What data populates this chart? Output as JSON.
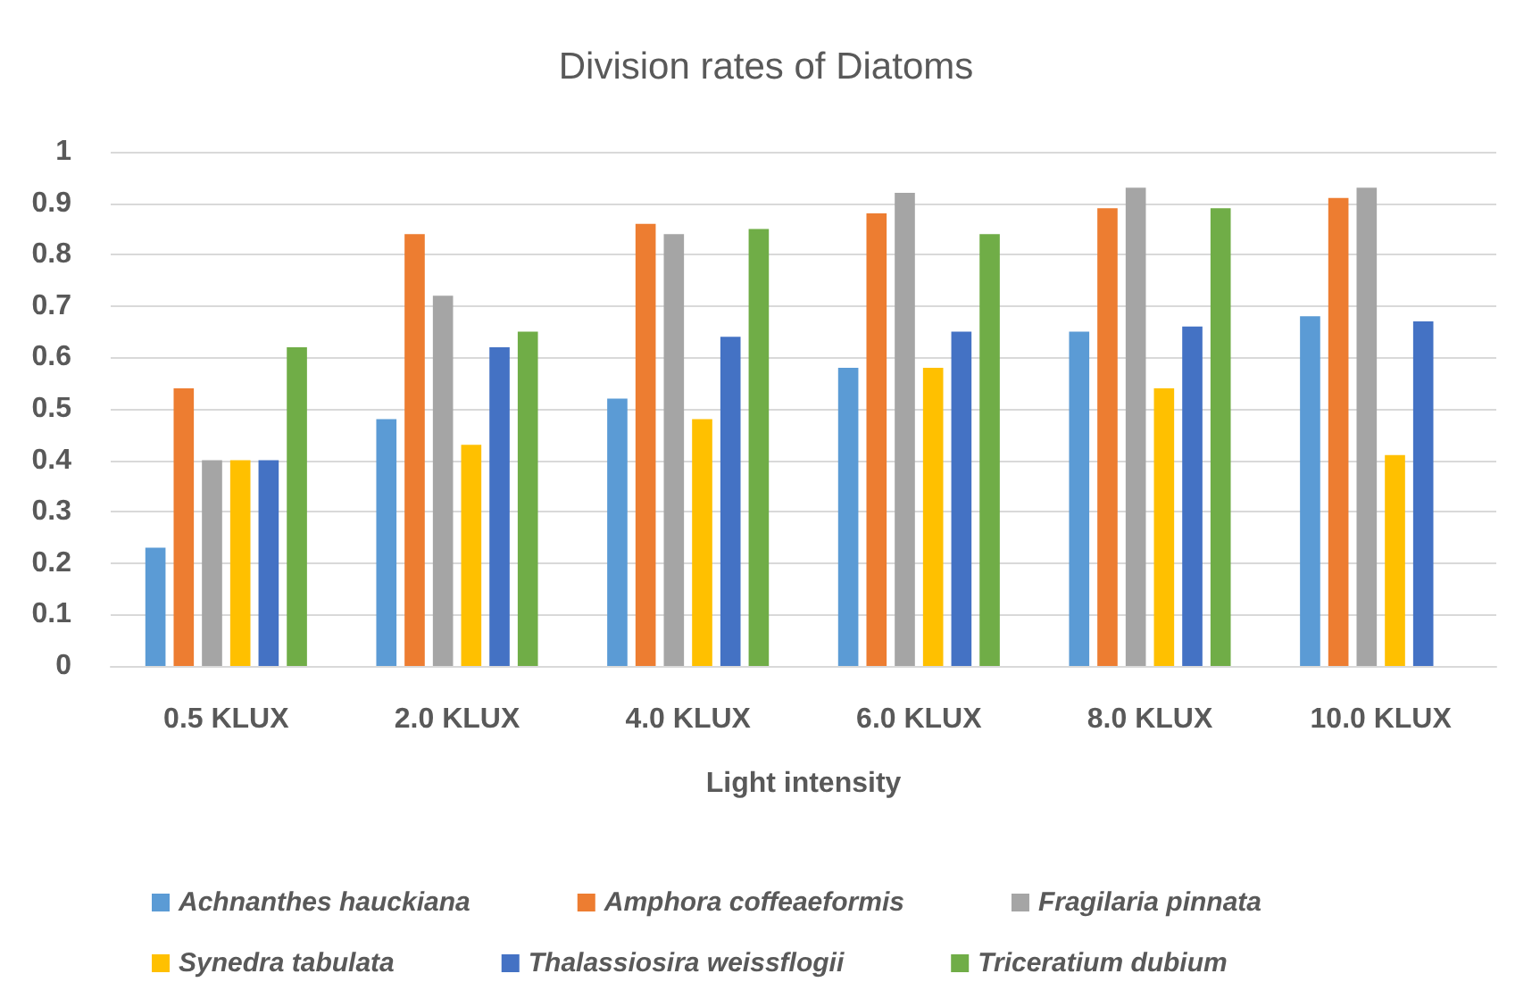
{
  "chart_data": {
    "type": "bar",
    "title": "Division rates of Diatoms",
    "xlabel": "Light intensity",
    "categories": [
      "0.5 KLUX",
      "2.0 KLUX",
      "4.0 KLUX",
      "6.0 KLUX",
      "8.0 KLUX",
      "10.0 KLUX"
    ],
    "series": [
      {
        "name": "Achnanthes hauckiana",
        "color": "#5b9bd5",
        "values": [
          0.23,
          0.48,
          0.52,
          0.58,
          0.65,
          0.68
        ]
      },
      {
        "name": "Amphora coffeaeformis",
        "color": "#ed7d31",
        "values": [
          0.54,
          0.84,
          0.86,
          0.88,
          0.89,
          0.91
        ]
      },
      {
        "name": "Fragilaria pinnata",
        "color": "#a5a5a5",
        "values": [
          0.4,
          0.72,
          0.84,
          0.92,
          0.93,
          0.93
        ]
      },
      {
        "name": "Synedra tabulata",
        "color": "#ffc000",
        "values": [
          0.4,
          0.43,
          0.48,
          0.58,
          0.54,
          0.41
        ]
      },
      {
        "name": "Thalassiosira weissflogii",
        "color": "#4472c4",
        "values": [
          0.4,
          0.62,
          0.64,
          0.65,
          0.66,
          0.67
        ]
      },
      {
        "name": "Triceratium dubium",
        "color": "#70ad47",
        "values": [
          0.62,
          0.65,
          0.85,
          0.84,
          0.89,
          null
        ]
      }
    ],
    "ylim": [
      0,
      1
    ],
    "yticks": [
      0,
      0.1,
      0.2,
      0.3,
      0.4,
      0.5,
      0.6,
      0.7,
      0.8,
      0.9,
      1
    ],
    "grid": "y",
    "legend": "bottom"
  }
}
